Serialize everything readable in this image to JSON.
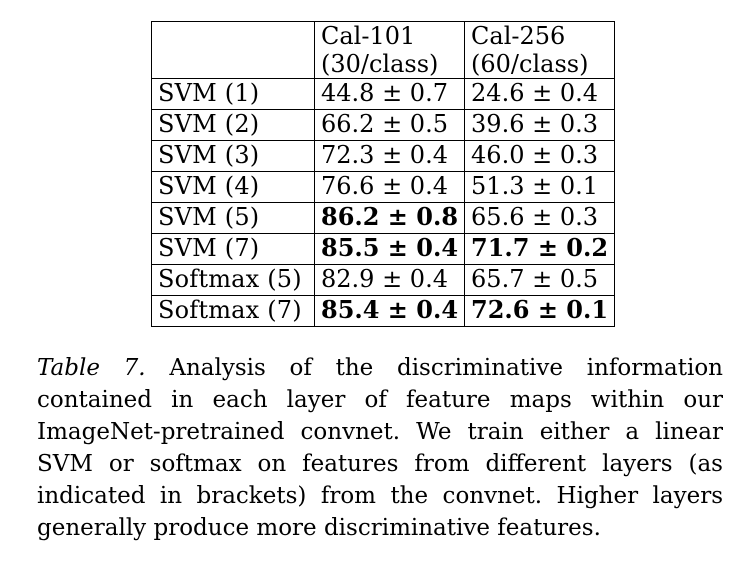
{
  "table": {
    "columns": [
      {
        "line1": "Cal-101",
        "line2": "(30/class)"
      },
      {
        "line1": "Cal-256",
        "line2": "(60/class)"
      }
    ],
    "rows": [
      {
        "label": "SVM (1)",
        "cells": [
          {
            "text": "44.8 ± 0.7",
            "bold": false
          },
          {
            "text": "24.6 ± 0.4",
            "bold": false
          }
        ]
      },
      {
        "label": "SVM (2)",
        "cells": [
          {
            "text": "66.2 ± 0.5",
            "bold": false
          },
          {
            "text": "39.6 ± 0.3",
            "bold": false
          }
        ]
      },
      {
        "label": "SVM (3)",
        "cells": [
          {
            "text": "72.3 ± 0.4",
            "bold": false
          },
          {
            "text": "46.0 ± 0.3",
            "bold": false
          }
        ]
      },
      {
        "label": "SVM (4)",
        "cells": [
          {
            "text": "76.6 ± 0.4",
            "bold": false
          },
          {
            "text": "51.3 ± 0.1",
            "bold": false
          }
        ]
      },
      {
        "label": "SVM (5)",
        "cells": [
          {
            "text": "86.2 ± 0.8",
            "bold": true
          },
          {
            "text": "65.6 ± 0.3",
            "bold": false
          }
        ]
      },
      {
        "label": "SVM (7)",
        "cells": [
          {
            "text": "85.5 ± 0.4",
            "bold": true
          },
          {
            "text": "71.7 ± 0.2",
            "bold": true
          }
        ]
      },
      {
        "label": "Softmax (5)",
        "cells": [
          {
            "text": "82.9 ± 0.4",
            "bold": false
          },
          {
            "text": "65.7 ± 0.5",
            "bold": false
          }
        ]
      },
      {
        "label": "Softmax (7)",
        "cells": [
          {
            "text": "85.4 ± 0.4",
            "bold": true
          },
          {
            "text": "72.6 ± 0.1",
            "bold": true
          }
        ]
      }
    ]
  },
  "caption": {
    "label": "Table 7.",
    "text": "Analysis of the discriminative information contained in each layer of feature maps within our ImageNet-pretrained convnet. We train either a linear SVM or softmax on features from different layers (as indicated in brackets) from the convnet. Higher layers generally produce more discriminative features."
  }
}
